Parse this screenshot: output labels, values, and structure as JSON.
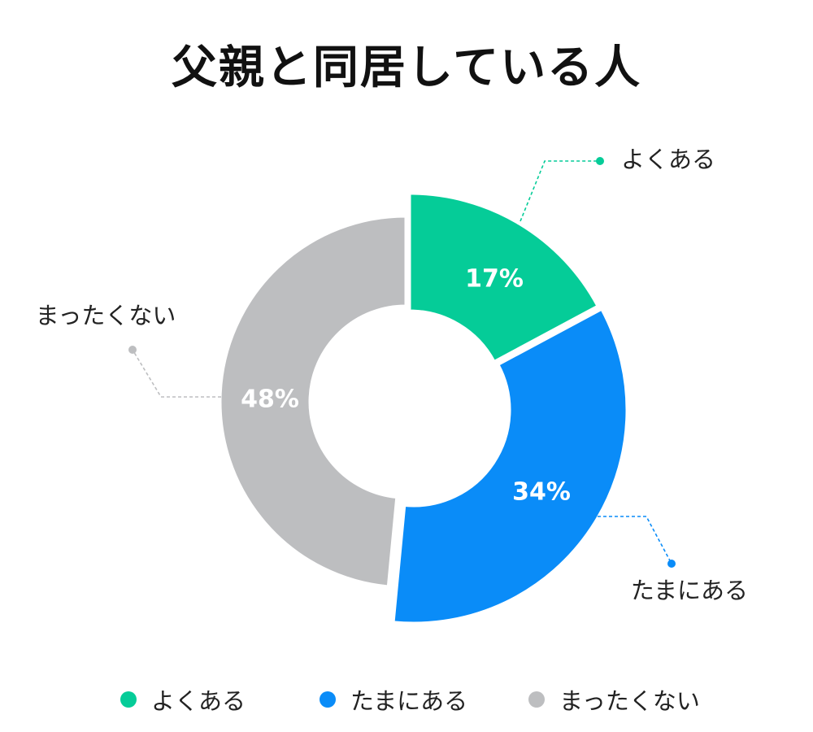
{
  "chart_data": {
    "type": "pie",
    "title": "父親と同居している人",
    "categories": [
      "よくある",
      "たまにある",
      "まったくない"
    ],
    "values": [
      17,
      34,
      48
    ],
    "value_labels": [
      "17%",
      "34%",
      "48%"
    ],
    "colors": [
      "#05cc98",
      "#0a8cf8",
      "#bdbec0"
    ],
    "style": "donut with exploded slices",
    "legend": "bottom"
  }
}
